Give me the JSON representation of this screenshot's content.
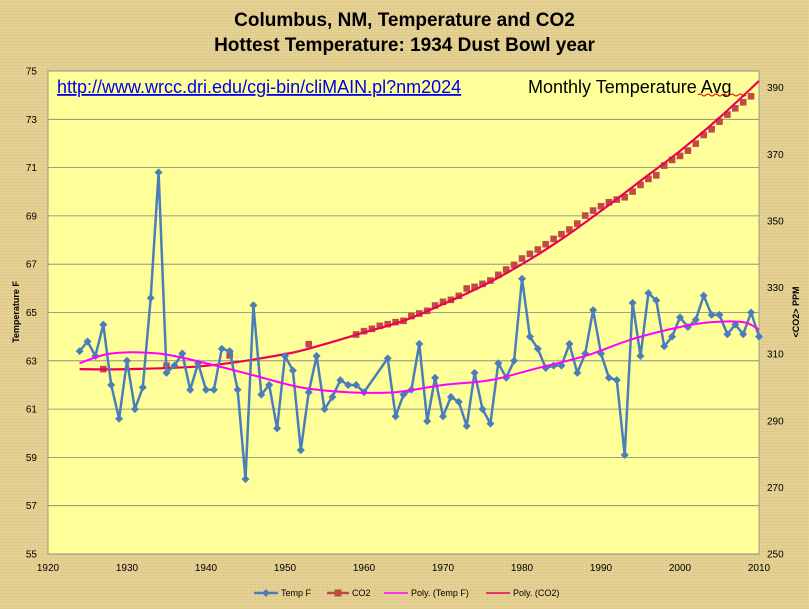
{
  "chart_data": {
    "type": "line",
    "title": "Columbus, NM,  Temperature and CO2",
    "subtitle": "Hottest Temperature: 1934 Dust Bowl year",
    "annotations": {
      "url": "http://www.wrcc.dri.edu/cgi-bin/cliMAIN.pl?nm2024",
      "text": "Monthly Temperature Avg"
    },
    "xlim": [
      1920,
      2010
    ],
    "x_ticks": [
      "1920",
      "1930",
      "1940",
      "1950",
      "1960",
      "1970",
      "1980",
      "1990",
      "2000",
      "2010"
    ],
    "ylabel": "Temperature F",
    "ylim": [
      55,
      75
    ],
    "y_ticks": [
      "55",
      "57",
      "59",
      "61",
      "63",
      "65",
      "67",
      "69",
      "71",
      "73",
      "75"
    ],
    "y2label": "<CO2>  PPM",
    "y2lim": [
      250,
      395
    ],
    "y2_ticks": [
      "250",
      "270",
      "290",
      "310",
      "330",
      "350",
      "370",
      "390"
    ],
    "legend": [
      "Temp F",
      "CO2",
      "Poly. (Temp F)",
      "Poly. (CO2)"
    ],
    "colors": {
      "temp": "#4a7ebb",
      "co2": "#be4b48",
      "poly_temp": "#ff00ff",
      "poly_co2": "#ee0055",
      "plot_bg": "#ffff99",
      "grid": "#7f7f7f"
    },
    "series": [
      {
        "name": "Temp F",
        "axis": "left",
        "x": [
          1924,
          1925,
          1926,
          1927,
          1928,
          1929,
          1930,
          1931,
          1932,
          1933,
          1934,
          1935,
          1936,
          1937,
          1938,
          1939,
          1940,
          1941,
          1942,
          1943,
          1944,
          1945,
          1946,
          1947,
          1948,
          1949,
          1950,
          1951,
          1952,
          1953,
          1954,
          1955,
          1956,
          1957,
          1958,
          1959,
          1960,
          1963,
          1964,
          1965,
          1966,
          1967,
          1968,
          1969,
          1970,
          1971,
          1972,
          1973,
          1974,
          1975,
          1976,
          1977,
          1978,
          1979,
          1980,
          1981,
          1982,
          1983,
          1984,
          1985,
          1986,
          1987,
          1988,
          1989,
          1990,
          1991,
          1992,
          1993,
          1994,
          1995,
          1996,
          1997,
          1998,
          1999,
          2000,
          2001,
          2002,
          2003,
          2004,
          2005,
          2006,
          2007,
          2008,
          2009,
          2010
        ],
        "values": [
          63.4,
          63.8,
          63.2,
          64.5,
          62.0,
          60.6,
          63.0,
          61.0,
          61.9,
          65.6,
          70.8,
          62.5,
          62.8,
          63.3,
          61.8,
          62.9,
          61.8,
          61.8,
          63.5,
          63.4,
          61.8,
          58.1,
          65.3,
          61.6,
          62.0,
          60.2,
          63.2,
          62.6,
          59.3,
          61.7,
          63.2,
          61.0,
          61.5,
          62.2,
          62.0,
          62.0,
          61.7,
          63.1,
          60.7,
          61.6,
          61.8,
          63.7,
          60.5,
          62.3,
          60.7,
          61.5,
          61.3,
          60.3,
          62.5,
          61.0,
          60.4,
          62.9,
          62.3,
          63.0,
          66.4,
          64.0,
          63.5,
          62.7,
          62.8,
          62.8,
          63.7,
          62.5,
          63.3,
          65.1,
          63.3,
          62.3,
          62.2,
          59.1,
          65.4,
          63.2,
          65.8,
          65.5,
          63.6,
          64.0,
          64.8,
          64.4,
          64.7,
          65.7,
          64.9,
          64.9,
          64.1,
          64.5,
          64.1,
          65.0,
          64.0
        ]
      },
      {
        "name": "CO2",
        "axis": "right",
        "x": [
          1927,
          1935,
          1943,
          1953,
          1959,
          1960,
          1961,
          1962,
          1963,
          1964,
          1965,
          1966,
          1967,
          1968,
          1969,
          1970,
          1971,
          1972,
          1973,
          1974,
          1975,
          1976,
          1977,
          1978,
          1979,
          1980,
          1981,
          1982,
          1983,
          1984,
          1985,
          1986,
          1987,
          1988,
          1989,
          1990,
          1991,
          1992,
          1993,
          1994,
          1995,
          1996,
          1997,
          1998,
          1999,
          2000,
          2001,
          2002,
          2003,
          2004,
          2005,
          2006,
          2007,
          2008,
          2009
        ],
        "values": [
          305.5,
          306.5,
          309.6,
          313.0,
          315.9,
          316.9,
          317.6,
          318.5,
          319.0,
          319.6,
          320.0,
          321.4,
          322.2,
          323.0,
          324.6,
          325.7,
          326.3,
          327.5,
          329.7,
          330.2,
          331.1,
          332.1,
          333.8,
          335.4,
          336.8,
          338.7,
          340.1,
          341.4,
          343.0,
          344.6,
          346.0,
          347.4,
          349.2,
          351.6,
          353.1,
          354.4,
          355.6,
          356.4,
          357.1,
          358.8,
          360.8,
          362.6,
          363.7,
          366.6,
          368.3,
          369.5,
          371.1,
          373.2,
          375.8,
          377.5,
          379.8,
          381.9,
          383.8,
          385.6,
          387.4
        ]
      },
      {
        "name": "Poly. (Temp F)",
        "axis": "left",
        "x": [
          1924,
          1928,
          1934,
          1940,
          1946,
          1952,
          1958,
          1964,
          1970,
          1976,
          1982,
          1988,
          1994,
          2000,
          2004,
          2008,
          2010
        ],
        "values": [
          62.9,
          63.3,
          63.3,
          62.9,
          62.4,
          61.9,
          61.7,
          61.7,
          62.0,
          62.2,
          62.7,
          63.2,
          63.9,
          64.4,
          64.6,
          64.6,
          64.3
        ]
      },
      {
        "name": "Poly. (CO2)",
        "axis": "right",
        "x": [
          1924,
          1930,
          1940,
          1950,
          1955,
          1960,
          1965,
          1970,
          1975,
          1980,
          1985,
          1990,
          1995,
          2000,
          2005,
          2010
        ],
        "values": [
          305.5,
          305.5,
          306.5,
          310.0,
          313.0,
          316.5,
          320.0,
          325.0,
          330.5,
          337.0,
          344.5,
          353.0,
          362.0,
          371.0,
          381.0,
          392.0
        ]
      }
    ]
  }
}
